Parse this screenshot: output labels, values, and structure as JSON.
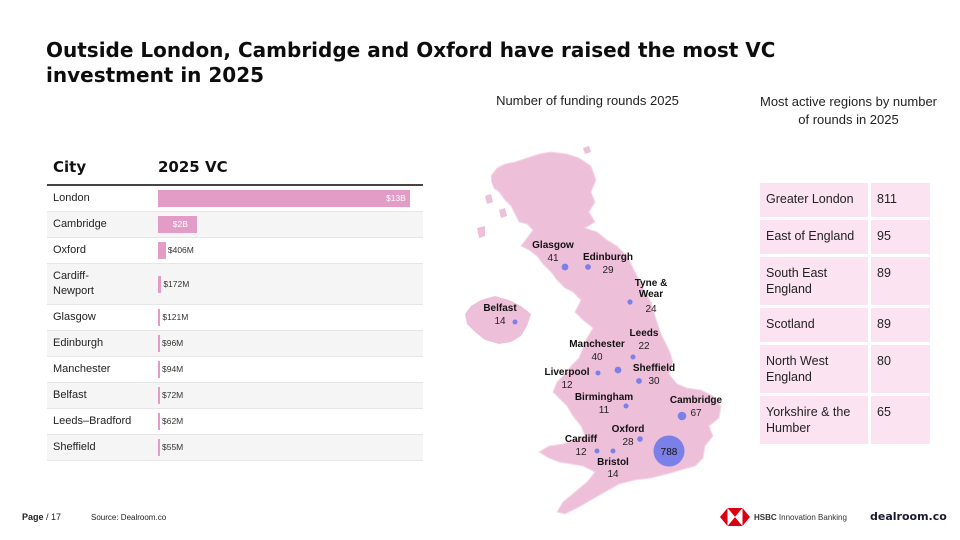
{
  "title": "Outside London, Cambridge and Oxford have raised the most VC investment in 2025",
  "table": {
    "headers": {
      "city": "City",
      "vc": "2025 VC"
    },
    "rows": [
      {
        "city": "London",
        "value": 13000,
        "label": "$13B"
      },
      {
        "city": "Cambridge",
        "value": 2000,
        "label": "$2B"
      },
      {
        "city": "Oxford",
        "value": 406,
        "label": "$406M"
      },
      {
        "city": "Cardiff-\nNewport",
        "value": 172,
        "label": "$172M"
      },
      {
        "city": "Glasgow",
        "value": 121,
        "label": "$121M"
      },
      {
        "city": "Edinburgh",
        "value": 96,
        "label": "$96M"
      },
      {
        "city": "Manchester",
        "value": 94,
        "label": "$94M"
      },
      {
        "city": "Belfast",
        "value": 72,
        "label": "$72M"
      },
      {
        "city": "Leeds–Bradford",
        "value": 62,
        "label": "$62M"
      },
      {
        "city": "Sheffield",
        "value": 55,
        "label": "$55M"
      }
    ]
  },
  "chart_data": [
    {
      "type": "bar",
      "orientation": "horizontal",
      "title": "",
      "xlabel": "2025 VC",
      "ylabel": "City",
      "unit": "USD millions",
      "categories": [
        "London",
        "Cambridge",
        "Oxford",
        "Cardiff-Newport",
        "Glasgow",
        "Edinburgh",
        "Manchester",
        "Belfast",
        "Leeds–Bradford",
        "Sheffield"
      ],
      "values": [
        13000,
        2000,
        406,
        172,
        121,
        96,
        94,
        72,
        62,
        55
      ]
    },
    {
      "type": "scatter",
      "title": "Number of funding rounds 2025",
      "points": [
        {
          "name": "Glasgow",
          "rounds": 41
        },
        {
          "name": "Edinburgh",
          "rounds": 29
        },
        {
          "name": "Tyne & Wear",
          "rounds": 24
        },
        {
          "name": "Belfast",
          "rounds": 14
        },
        {
          "name": "Leeds",
          "rounds": 22
        },
        {
          "name": "Manchester",
          "rounds": 40
        },
        {
          "name": "Liverpool",
          "rounds": 12
        },
        {
          "name": "Sheffield",
          "rounds": 30
        },
        {
          "name": "Birmingham",
          "rounds": 11
        },
        {
          "name": "Cambridge",
          "rounds": 67
        },
        {
          "name": "Oxford",
          "rounds": 28
        },
        {
          "name": "Cardiff",
          "rounds": 12
        },
        {
          "name": "Bristol",
          "rounds": 14
        },
        {
          "name": "",
          "rounds": 788
        }
      ],
      "colors": {
        "bubble": "#7b7fe8",
        "land": "#eebfd9"
      }
    },
    {
      "type": "table",
      "title": "Most active regions by number of rounds in 2025",
      "rows": [
        {
          "region": "Greater London",
          "rounds": 811
        },
        {
          "region": "East of England",
          "rounds": 95
        },
        {
          "region": "South East England",
          "rounds": 89
        },
        {
          "region": "Scotland",
          "rounds": 89
        },
        {
          "region": "North West England",
          "rounds": 80
        },
        {
          "region": "Yorkshire & the Humber",
          "rounds": 65
        }
      ]
    }
  ],
  "map": {
    "title": "Number of funding rounds 2025",
    "cities": [
      {
        "name": "Glasgow",
        "value": "41"
      },
      {
        "name": "Edinburgh",
        "value": "29"
      },
      {
        "name": "Tyne &\nWear",
        "value": "24"
      },
      {
        "name": "Belfast",
        "value": "14"
      },
      {
        "name": "Leeds",
        "value": "22"
      },
      {
        "name": "Manchester",
        "value": "40"
      },
      {
        "name": "Liverpool",
        "value": "12"
      },
      {
        "name": "Sheffield",
        "value": "30"
      },
      {
        "name": "Birmingham",
        "value": "11"
      },
      {
        "name": "Cambridge",
        "value": "67"
      },
      {
        "name": "Oxford",
        "value": "28"
      },
      {
        "name": "Cardiff",
        "value": "12"
      },
      {
        "name": "Bristol",
        "value": "14"
      },
      {
        "name": "",
        "value": "788"
      }
    ]
  },
  "regions": {
    "title": "Most active regions by number of rounds in 2025",
    "rows": [
      {
        "name": "Greater London",
        "value": "811"
      },
      {
        "name": "East of England",
        "value": "95"
      },
      {
        "name": "South East England",
        "value": "89"
      },
      {
        "name": "Scotland",
        "value": "89"
      },
      {
        "name": "North West England",
        "value": "80"
      },
      {
        "name": "Yorkshire & the Humber",
        "value": "65"
      }
    ]
  },
  "footer": {
    "page_label": "Page",
    "page_number": "/ 17",
    "source": "Source: Dealroom.co",
    "hsbc_brand": "HSBC",
    "hsbc_sub": "Innovation Banking",
    "dealroom": "dealroom.co"
  },
  "colors": {
    "bar": "#e39cc6",
    "bubble": "#7b7fe8",
    "land": "#eebfd9",
    "region_cell": "#fbe3f2",
    "hsbc_red": "#db0011"
  }
}
